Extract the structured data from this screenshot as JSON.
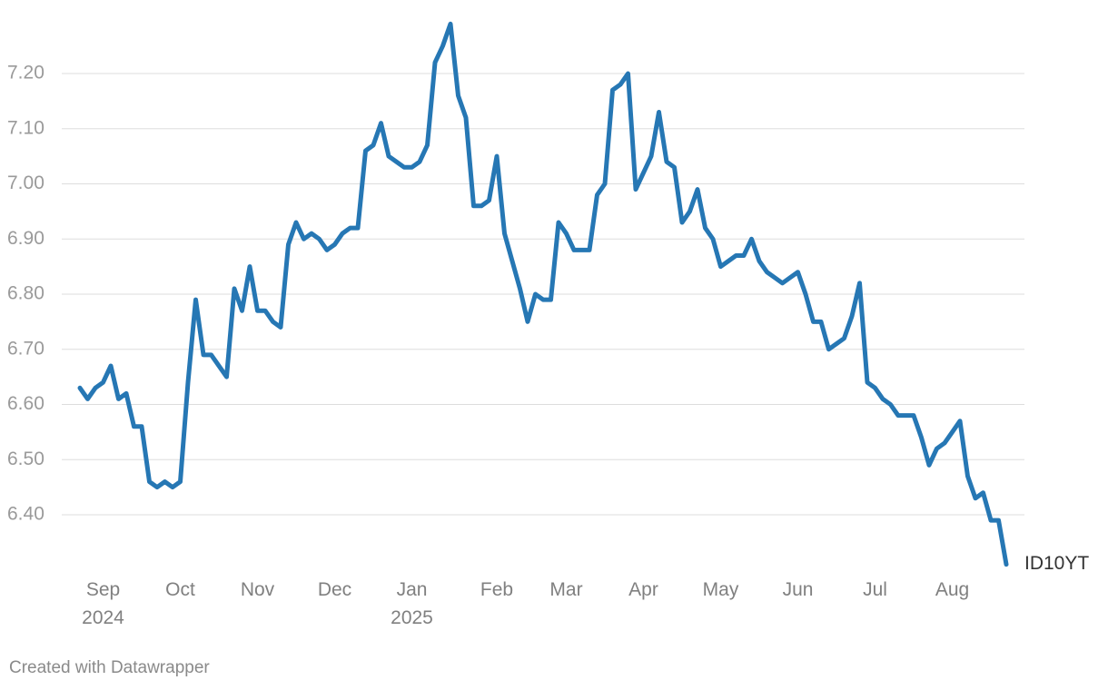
{
  "chart_data": {
    "type": "line",
    "categories": [
      null,
      null,
      null,
      "Sep\n2024",
      null,
      null,
      null,
      null,
      null,
      null,
      null,
      null,
      null,
      "Oct",
      null,
      null,
      null,
      null,
      null,
      null,
      null,
      null,
      null,
      "Nov",
      null,
      null,
      null,
      null,
      null,
      null,
      null,
      null,
      null,
      "Dec",
      null,
      null,
      null,
      null,
      null,
      null,
      null,
      null,
      null,
      "Jan\n2025",
      null,
      null,
      null,
      null,
      null,
      null,
      null,
      null,
      null,
      null,
      "Feb",
      null,
      null,
      null,
      null,
      null,
      null,
      null,
      null,
      "Mar",
      null,
      null,
      null,
      null,
      null,
      null,
      null,
      null,
      null,
      "Apr",
      null,
      null,
      null,
      null,
      null,
      null,
      null,
      null,
      null,
      "May",
      null,
      null,
      null,
      null,
      null,
      null,
      null,
      null,
      null,
      "Jun",
      null,
      null,
      null,
      null,
      null,
      null,
      null,
      null,
      null,
      "Jul",
      null,
      null,
      null,
      null,
      null,
      null,
      null,
      null,
      null,
      "Aug",
      null,
      null,
      null,
      null,
      null,
      null,
      null
    ],
    "series": [
      {
        "name": "ID10YT",
        "color": "#2677b4",
        "values": [
          6.63,
          6.61,
          6.63,
          6.64,
          6.67,
          6.61,
          6.62,
          6.56,
          6.56,
          6.46,
          6.45,
          6.46,
          6.45,
          6.46,
          6.64,
          6.79,
          6.69,
          6.69,
          6.67,
          6.65,
          6.81,
          6.77,
          6.85,
          6.77,
          6.77,
          6.75,
          6.74,
          6.89,
          6.93,
          6.9,
          6.91,
          6.9,
          6.88,
          6.89,
          6.91,
          6.92,
          6.92,
          7.06,
          7.07,
          7.11,
          7.05,
          7.04,
          7.03,
          7.03,
          7.04,
          7.07,
          7.22,
          7.25,
          7.29,
          7.16,
          7.12,
          6.96,
          6.96,
          6.97,
          7.05,
          6.91,
          6.86,
          6.81,
          6.75,
          6.8,
          6.79,
          6.79,
          6.93,
          6.91,
          6.88,
          6.88,
          6.88,
          6.98,
          7.0,
          7.17,
          7.18,
          7.2,
          6.99,
          7.02,
          7.05,
          7.13,
          7.04,
          7.03,
          6.93,
          6.95,
          6.99,
          6.92,
          6.9,
          6.85,
          6.86,
          6.87,
          6.87,
          6.9,
          6.86,
          6.84,
          6.83,
          6.82,
          6.83,
          6.84,
          6.8,
          6.75,
          6.75,
          6.7,
          6.71,
          6.72,
          6.76,
          6.82,
          6.64,
          6.63,
          6.61,
          6.6,
          6.58,
          6.58,
          6.58,
          6.54,
          6.49,
          6.52,
          6.53,
          6.55,
          6.57,
          6.47,
          6.43,
          6.44,
          6.39,
          6.39,
          6.31
        ]
      }
    ],
    "ylim": [
      6.3,
      7.3
    ],
    "yticks": [
      {
        "value": 6.4,
        "label": "6.40"
      },
      {
        "value": 6.5,
        "label": "6.50"
      },
      {
        "value": 6.6,
        "label": "6.60"
      },
      {
        "value": 6.7,
        "label": "6.70"
      },
      {
        "value": 6.8,
        "label": "6.80"
      },
      {
        "value": 6.9,
        "label": "6.90"
      },
      {
        "value": 7.0,
        "label": "7.00"
      },
      {
        "value": 7.1,
        "label": "7.10"
      },
      {
        "value": 7.2,
        "label": "7.20"
      }
    ],
    "grid": true,
    "credit": "Created with Datawrapper"
  }
}
